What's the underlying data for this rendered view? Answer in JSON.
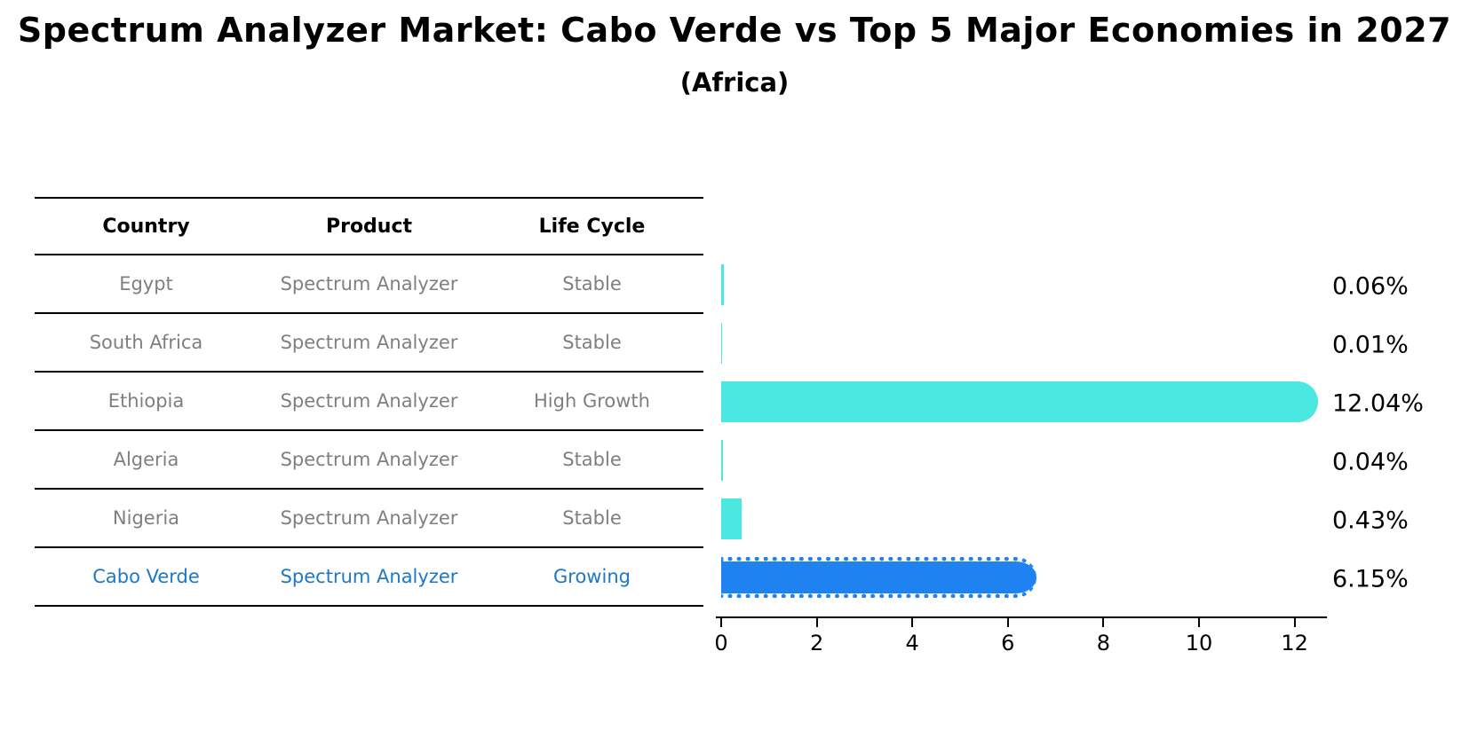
{
  "title": "Spectrum Analyzer Market: Cabo Verde vs Top 5 Major Economies in 2027",
  "subtitle": "(Africa)",
  "colors": {
    "bar_default": "#4AE8E0",
    "bar_highlight": "#1E82F0",
    "highlight_text": "#1D78C8",
    "row_text": "#7F7F7F",
    "header_text": "#000000",
    "axis": "#000000"
  },
  "table": {
    "headers": [
      "Country",
      "Product",
      "Life Cycle"
    ],
    "rows": [
      {
        "country": "Egypt",
        "product": "Spectrum Analyzer",
        "life_cycle": "Stable",
        "highlight": false
      },
      {
        "country": "South Africa",
        "product": "Spectrum Analyzer",
        "life_cycle": "Stable",
        "highlight": false
      },
      {
        "country": "Ethiopia",
        "product": "Spectrum Analyzer",
        "life_cycle": "High Growth",
        "highlight": false
      },
      {
        "country": "Algeria",
        "product": "Spectrum Analyzer",
        "life_cycle": "Stable",
        "highlight": false
      },
      {
        "country": "Nigeria",
        "product": "Spectrum Analyzer",
        "life_cycle": "Stable",
        "highlight": false
      },
      {
        "country": "Cabo Verde",
        "product": "Spectrum Analyzer",
        "life_cycle": "Growing",
        "highlight": true
      }
    ]
  },
  "chart_data": {
    "type": "bar",
    "orientation": "horizontal",
    "title": "Spectrum Analyzer Market: Cabo Verde vs Top 5 Major Economies in 2027",
    "subtitle": "(Africa)",
    "categories": [
      "Egypt",
      "South Africa",
      "Ethiopia",
      "Algeria",
      "Nigeria",
      "Cabo Verde"
    ],
    "values": [
      0.06,
      0.01,
      12.04,
      0.04,
      0.43,
      6.15
    ],
    "value_labels": [
      "0.06%",
      "0.01%",
      "12.04%",
      "0.04%",
      "0.43%",
      "6.15%"
    ],
    "highlight_index": 5,
    "xlabel": "",
    "ylabel": "",
    "xticks": [
      0,
      2,
      4,
      6,
      8,
      10,
      12
    ],
    "xlim": [
      0,
      12.7
    ],
    "grid": false,
    "legend": false
  }
}
